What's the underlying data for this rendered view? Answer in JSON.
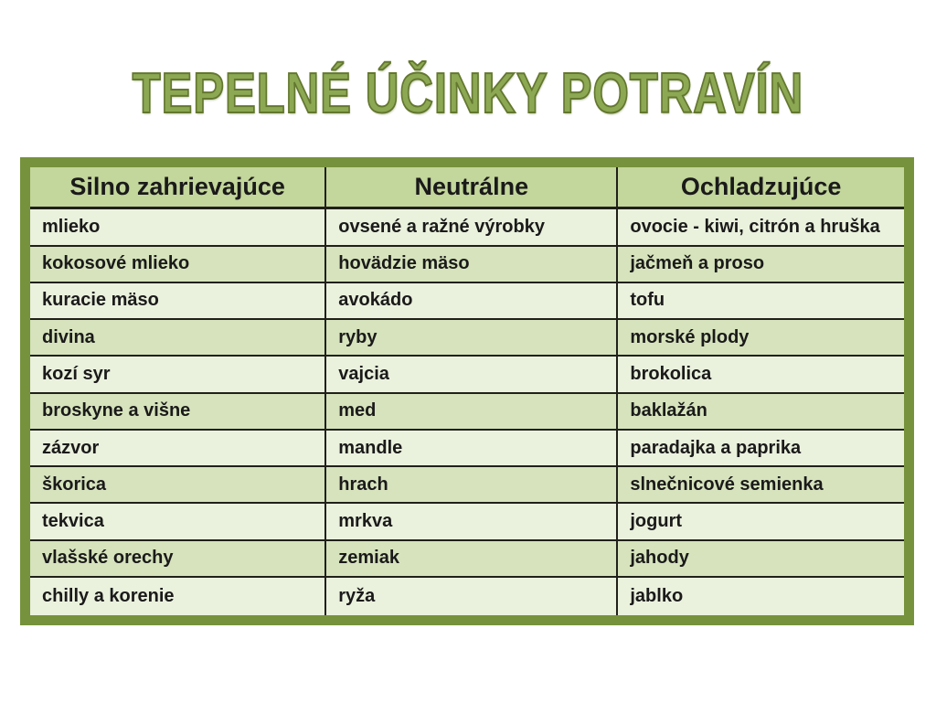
{
  "title": "TEPELNÉ ÚČINKY POTRAVÍN",
  "colors": {
    "background": "#FFFFFF",
    "title_fill": "#8CA853",
    "title_outline": "#63772F",
    "table_border": "#76923C",
    "header_bg": "#C3D69B",
    "row_light": "#EAF1DD",
    "row_dark": "#D6E3BC",
    "cell_line": "#20201A",
    "text": "#1A1A1A"
  },
  "table": {
    "columns": [
      "Silno zahrievajúce",
      "Neutrálne",
      "Ochladzujúce"
    ],
    "rows": [
      [
        "mlieko",
        "ovsené a ražné výrobky",
        "ovocie - kiwi, citrón a hruška"
      ],
      [
        "kokosové mlieko",
        "hovädzie mäso",
        "jačmeň a proso"
      ],
      [
        "kuracie mäso",
        "avokádo",
        "tofu"
      ],
      [
        "divina",
        "ryby",
        "morské plody"
      ],
      [
        "kozí syr",
        "vajcia",
        "brokolica"
      ],
      [
        "broskyne a višne",
        "med",
        "baklažán"
      ],
      [
        "zázvor",
        "mandle",
        "paradajka a paprika"
      ],
      [
        "škorica",
        "hrach",
        "slnečnicové semienka"
      ],
      [
        "tekvica",
        "mrkva",
        "jogurt"
      ],
      [
        "vlašské orechy",
        "zemiak",
        "jahody"
      ],
      [
        "chilly a korenie",
        "ryža",
        "jablko"
      ]
    ]
  }
}
